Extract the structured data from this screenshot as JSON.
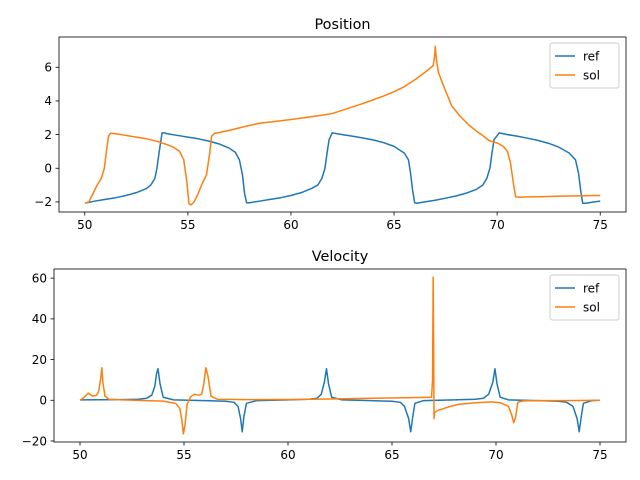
{
  "chart_data": [
    {
      "type": "line",
      "title": "Position",
      "xlabel": "",
      "ylabel": "",
      "xlim": [
        48.75,
        76.25
      ],
      "ylim": [
        -2.6,
        7.8
      ],
      "xticks": [
        50,
        55,
        60,
        65,
        70,
        75
      ],
      "yticks": [
        -2,
        0,
        2,
        4,
        6
      ],
      "xtick_labels": [
        "50",
        "55",
        "60",
        "65",
        "70",
        "75"
      ],
      "ytick_labels": [
        "−2",
        "0",
        "2",
        "4",
        "6"
      ],
      "legend": {
        "position": "upper right"
      },
      "grid": false,
      "series": [
        {
          "name": "ref",
          "color": "#1f77b4",
          "x": [
            50.1,
            50.5,
            51,
            51.5,
            52,
            52.5,
            53,
            53.2,
            53.4,
            53.5,
            53.6,
            53.7,
            53.75,
            53.85,
            54,
            54.5,
            55,
            55.5,
            56,
            56.5,
            57,
            57.3,
            57.5,
            57.65,
            57.75,
            57.85,
            58,
            58.5,
            59,
            59.5,
            60,
            60.5,
            61,
            61.3,
            61.5,
            61.65,
            61.75,
            61.85,
            62,
            62.5,
            63,
            63.5,
            64,
            64.5,
            65,
            65.5,
            65.7,
            65.8,
            65.9,
            66,
            66.1,
            66.5,
            67,
            67.5,
            68,
            68.5,
            69,
            69.3,
            69.5,
            69.65,
            69.75,
            69.85,
            70.1,
            70.5,
            71,
            71.5,
            72,
            72.5,
            73,
            73.5,
            73.8,
            73.95,
            74.05,
            74.15,
            74.3,
            74.6,
            75
          ],
          "y": [
            -2.05,
            -1.95,
            -1.85,
            -1.75,
            -1.62,
            -1.45,
            -1.2,
            -1.0,
            -0.6,
            0,
            0.9,
            1.7,
            2.1,
            2.1,
            2.05,
            1.95,
            1.85,
            1.75,
            1.62,
            1.45,
            1.2,
            0.95,
            0.5,
            -0.4,
            -1.5,
            -2.05,
            -2.05,
            -1.95,
            -1.85,
            -1.75,
            -1.62,
            -1.45,
            -1.2,
            -1.0,
            -0.6,
            0,
            0.9,
            1.7,
            2.1,
            2.0,
            1.9,
            1.8,
            1.68,
            1.52,
            1.3,
            0.9,
            0.5,
            -0.3,
            -1.3,
            -2.05,
            -2.08,
            -2.0,
            -1.9,
            -1.78,
            -1.65,
            -1.48,
            -1.25,
            -1.0,
            -0.6,
            0,
            0.9,
            1.7,
            2.1,
            2.0,
            1.9,
            1.78,
            1.65,
            1.48,
            1.25,
            0.9,
            0.5,
            -0.3,
            -1.3,
            -2.08,
            -2.08,
            -2.02,
            -1.95
          ]
        },
        {
          "name": "sol",
          "color": "#ff7f0e",
          "x": [
            50,
            50.2,
            50.4,
            50.6,
            50.8,
            50.95,
            51.05,
            51.15,
            51.25,
            51.5,
            52,
            52.5,
            53,
            53.5,
            54,
            54.3,
            54.6,
            54.8,
            54.95,
            55.05,
            55.15,
            55.3,
            55.5,
            55.7,
            55.9,
            56.05,
            56.15,
            56.3,
            56.5,
            57,
            57.5,
            58,
            58.5,
            59,
            59.5,
            60,
            60.5,
            61,
            61.5,
            62,
            62.5,
            63,
            63.5,
            64,
            64.5,
            65,
            65.5,
            66,
            66.5,
            66.9,
            66.97,
            67.0,
            67.05,
            67.15,
            67.4,
            67.8,
            68.2,
            68.6,
            69,
            69.3,
            69.6,
            70,
            70.3,
            70.5,
            70.65,
            70.8,
            70.9,
            71,
            71.5,
            72,
            72.5,
            73,
            73.5,
            74,
            74.5,
            75
          ],
          "y": [
            -2.08,
            -2.0,
            -1.5,
            -1.0,
            -0.6,
            0,
            1.0,
            1.9,
            2.08,
            2.05,
            1.95,
            1.85,
            1.75,
            1.6,
            1.4,
            1.25,
            1.0,
            0.5,
            -0.8,
            -2.1,
            -2.18,
            -2.0,
            -1.5,
            -0.9,
            -0.4,
            0.8,
            1.9,
            2.08,
            2.12,
            2.25,
            2.4,
            2.55,
            2.68,
            2.75,
            2.82,
            2.9,
            2.98,
            3.07,
            3.15,
            3.25,
            3.45,
            3.65,
            3.85,
            4.07,
            4.3,
            4.55,
            4.85,
            5.25,
            5.7,
            6.1,
            6.7,
            7.25,
            6.5,
            5.7,
            4.9,
            3.7,
            3.1,
            2.6,
            2.2,
            1.95,
            1.65,
            1.5,
            1.3,
            1.0,
            0.3,
            -1.0,
            -1.7,
            -1.72,
            -1.7,
            -1.69,
            -1.68,
            -1.66,
            -1.65,
            -1.64,
            -1.63,
            -1.62
          ]
        }
      ]
    },
    {
      "type": "line",
      "title": "Velocity",
      "xlabel": "",
      "ylabel": "",
      "xlim": [
        48.75,
        76.25
      ],
      "ylim": [
        -20.5,
        64.5
      ],
      "xticks": [
        50,
        55,
        60,
        65,
        70,
        75
      ],
      "yticks": [
        -20,
        0,
        20,
        40,
        60
      ],
      "xtick_labels": [
        "50",
        "55",
        "60",
        "65",
        "70",
        "75"
      ],
      "ytick_labels": [
        "−20",
        "0",
        "20",
        "40",
        "60"
      ],
      "legend": {
        "position": "upper right"
      },
      "grid": false,
      "series": [
        {
          "name": "ref",
          "color": "#1f77b4",
          "x": [
            50,
            51,
            52,
            52.8,
            53.2,
            53.45,
            53.6,
            53.68,
            53.75,
            53.85,
            54,
            54.5,
            56,
            57,
            57.4,
            57.6,
            57.72,
            57.8,
            57.88,
            58,
            58.5,
            60,
            61,
            61.4,
            61.6,
            61.75,
            61.85,
            61.95,
            62.1,
            62.6,
            64,
            65,
            65.4,
            65.6,
            65.8,
            65.9,
            66.0,
            66.1,
            66.5,
            68,
            69,
            69.4,
            69.65,
            69.85,
            69.95,
            70.05,
            70.2,
            70.6,
            72,
            73,
            73.4,
            73.7,
            73.9,
            74.0,
            74.1,
            74.2,
            74.6,
            75
          ],
          "y": [
            0.2,
            0.25,
            0.3,
            0.5,
            1.0,
            2.5,
            7,
            13,
            15.5,
            8,
            1.5,
            0.2,
            -0.2,
            -0.5,
            -1,
            -3,
            -9,
            -15.5,
            -8,
            -1.5,
            -0.2,
            0.2,
            0.5,
            1,
            3,
            9,
            15.5,
            8,
            1.5,
            0.2,
            -0.2,
            -0.5,
            -1,
            -3,
            -9,
            -15.5,
            -8,
            -1.5,
            -0.2,
            0.2,
            0.5,
            1,
            3,
            9,
            15.5,
            8,
            1.5,
            0.2,
            -0.2,
            -0.5,
            -1,
            -3,
            -9,
            -15.5,
            -8,
            -1.5,
            -0.2,
            0
          ]
        },
        {
          "name": "sol",
          "color": "#ff7f0e",
          "x": [
            50,
            50.2,
            50.4,
            50.6,
            50.8,
            50.9,
            51.0,
            51.05,
            51.1,
            51.2,
            51.4,
            52,
            53,
            54,
            54.6,
            54.8,
            54.9,
            54.97,
            55.05,
            55.15,
            55.3,
            55.5,
            55.7,
            55.85,
            55.95,
            56.05,
            56.15,
            56.3,
            56.6,
            58,
            60,
            62,
            64,
            66,
            66.9,
            66.95,
            66.98,
            67.0,
            67.02,
            67.05,
            67.2,
            67.5,
            67.8,
            68.2,
            69,
            69.8,
            70.2,
            70.6,
            70.75,
            70.85,
            70.95,
            71.05,
            71.3,
            72,
            73,
            74,
            75
          ],
          "y": [
            0,
            1.5,
            3.5,
            2.0,
            2.5,
            4.5,
            11,
            16,
            9,
            2,
            0.5,
            0.2,
            -0.1,
            -0.4,
            -1.5,
            -4,
            -10,
            -16.5,
            -12,
            -2,
            1.5,
            3.0,
            2.5,
            3.0,
            8,
            16,
            12,
            2,
            0.5,
            0.3,
            0.4,
            0.6,
            1.0,
            1.3,
            1.5,
            10,
            60.5,
            30,
            -9,
            -6,
            -5,
            -4,
            -3,
            -2,
            -1.2,
            -0.8,
            -1.2,
            -3,
            -7,
            -11,
            -8,
            -1,
            -0.3,
            -0.2,
            -0.2,
            -0.1,
            0
          ]
        }
      ]
    }
  ]
}
